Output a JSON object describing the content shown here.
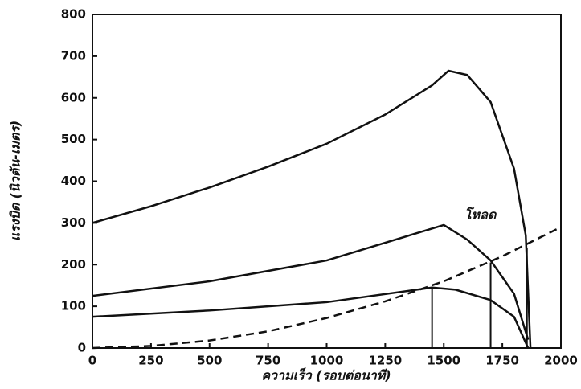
{
  "chart_data": {
    "type": "line",
    "x_label": "ความเร็ว (รอบต่อนาที)",
    "y_label": "แรงบิด (นิวตัน-เมตร)",
    "annotation": "โหลด",
    "xlim": [
      0,
      2000
    ],
    "ylim": [
      0,
      800
    ],
    "xticks": [
      0,
      250,
      500,
      750,
      1000,
      1250,
      1500,
      1750,
      2000
    ],
    "yticks": [
      0,
      100,
      200,
      300,
      400,
      500,
      600,
      700,
      800
    ],
    "series": [
      {
        "color": "#111111",
        "dashed": false,
        "x": [
          0,
          250,
          500,
          750,
          1000,
          1250,
          1450,
          1520,
          1600,
          1700,
          1800,
          1850,
          1870
        ],
        "values": [
          300,
          340,
          385,
          435,
          490,
          560,
          630,
          665,
          655,
          590,
          430,
          270,
          0
        ]
      },
      {
        "color": "#111111",
        "dashed": false,
        "x": [
          0,
          500,
          1000,
          1500,
          1600,
          1700,
          1800,
          1860
        ],
        "values": [
          125,
          160,
          210,
          295,
          260,
          210,
          130,
          20
        ]
      },
      {
        "color": "#111111",
        "dashed": false,
        "x": [
          0,
          500,
          1000,
          1450,
          1550,
          1700,
          1800,
          1860
        ],
        "values": [
          75,
          90,
          110,
          145,
          140,
          115,
          75,
          0
        ]
      },
      {
        "color": "#111111",
        "dashed": true,
        "x": [
          0,
          250,
          500,
          750,
          1000,
          1250,
          1500,
          1750,
          2000
        ],
        "values": [
          0,
          5,
          18,
          40,
          72,
          112,
          160,
          220,
          290
        ]
      }
    ],
    "droplines": [
      {
        "x": 1450,
        "y": 145
      },
      {
        "x": 1700,
        "y": 205
      },
      {
        "x": 1855,
        "y": 240
      }
    ]
  }
}
